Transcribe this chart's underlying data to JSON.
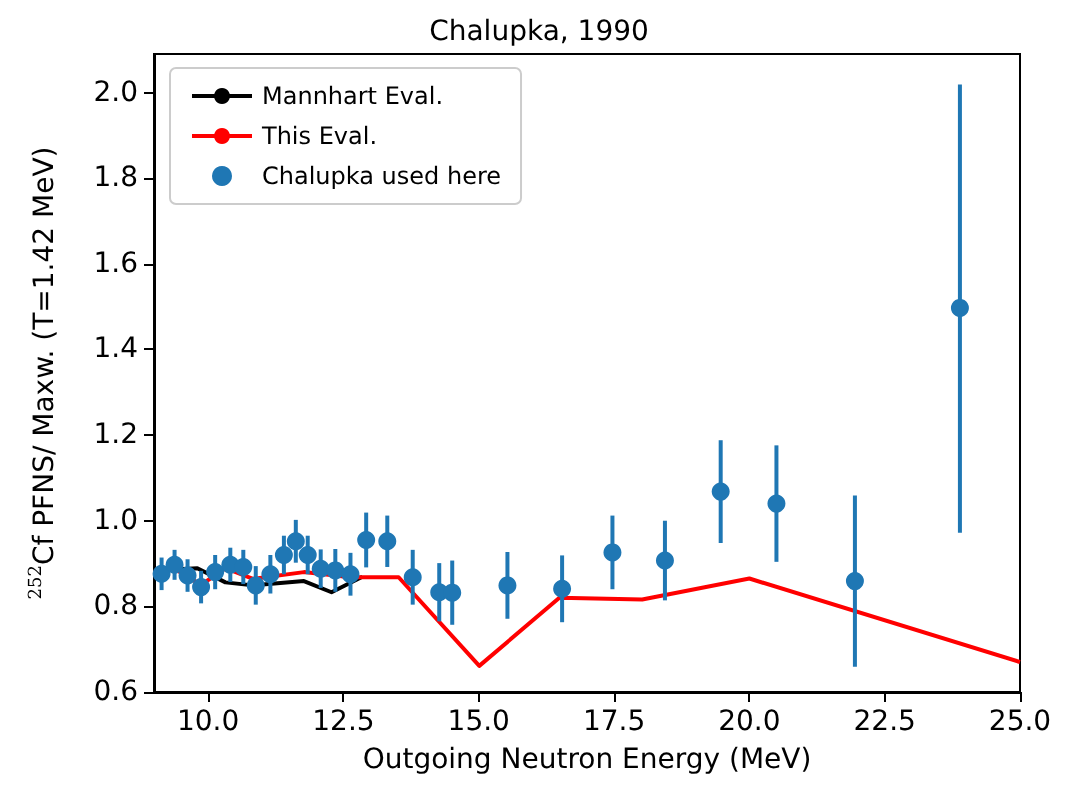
{
  "chart_data": {
    "type": "line",
    "title": "Chalupka, 1990",
    "xlabel": "Outgoing Neutron Energy (MeV)",
    "ylabel": "$^{252}$Cf PFNS/ Maxw. (T=1.42 MeV)",
    "xlim": [
      9,
      25
    ],
    "ylim": [
      0.6,
      2.09
    ],
    "xticks": [
      {
        "value": 10,
        "label": "10.0"
      },
      {
        "value": 12.5,
        "label": "12.5"
      },
      {
        "value": 15,
        "label": "15.0"
      },
      {
        "value": 17.5,
        "label": "17.5"
      },
      {
        "value": 20,
        "label": "20.0"
      },
      {
        "value": 22.5,
        "label": "22.5"
      },
      {
        "value": 25,
        "label": "25.0"
      }
    ],
    "yticks": [
      {
        "value": 0.6,
        "label": "0.6"
      },
      {
        "value": 0.8,
        "label": "0.8"
      },
      {
        "value": 1.0,
        "label": "1.0"
      },
      {
        "value": 1.2,
        "label": "1.2"
      },
      {
        "value": 1.4,
        "label": "1.4"
      },
      {
        "value": 1.6,
        "label": "1.6"
      },
      {
        "value": 1.8,
        "label": "1.8"
      },
      {
        "value": 2.0,
        "label": "2.0"
      }
    ],
    "grid": false,
    "legend": "top left",
    "series": [
      {
        "name": "Mannhart Eval.",
        "color": "#000000",
        "marker": "none",
        "x": [
          9.0,
          9.8,
          10.32,
          10.83,
          11.77,
          12.28,
          12.85
        ],
        "values": [
          0.884,
          0.889,
          0.856,
          0.849,
          0.859,
          0.833,
          0.869
        ]
      },
      {
        "name": "This Eval.",
        "color": "#ff0000",
        "marker": "none",
        "x": [
          9.0,
          9.38,
          9.87,
          10.32,
          10.83,
          11.77,
          12.63,
          13.52,
          15.01,
          16.49,
          18.02,
          20.0,
          25.0
        ],
        "values": [
          0.88,
          0.888,
          0.85,
          0.889,
          0.864,
          0.88,
          0.868,
          0.868,
          0.661,
          0.82,
          0.816,
          0.865,
          0.67
        ]
      },
      {
        "name": "Chalupka used here",
        "type": "scatter",
        "color": "#1f77b4",
        "marker": "circle",
        "x": [
          9.14,
          9.38,
          9.62,
          9.87,
          10.13,
          10.41,
          10.65,
          10.88,
          11.15,
          11.4,
          11.62,
          11.84,
          12.08,
          12.35,
          12.63,
          12.92,
          13.31,
          13.78,
          14.27,
          14.51,
          15.53,
          16.54,
          17.47,
          18.44,
          19.47,
          20.5,
          21.95,
          23.89
        ],
        "values": [
          0.876,
          0.897,
          0.872,
          0.845,
          0.88,
          0.897,
          0.892,
          0.849,
          0.875,
          0.92,
          0.952,
          0.92,
          0.888,
          0.884,
          0.875,
          0.955,
          0.952,
          0.868,
          0.833,
          0.832,
          0.849,
          0.841,
          0.926,
          0.907,
          1.068,
          1.04,
          0.859,
          1.497
        ],
        "errors": [
          0.038,
          0.035,
          0.038,
          0.038,
          0.04,
          0.04,
          0.04,
          0.045,
          0.045,
          0.045,
          0.05,
          0.045,
          0.045,
          0.05,
          0.05,
          0.064,
          0.06,
          0.064,
          0.068,
          0.075,
          0.078,
          0.078,
          0.086,
          0.093,
          0.12,
          0.136,
          0.2,
          [
            0.972,
            2.019
          ]
        ]
      }
    ]
  }
}
